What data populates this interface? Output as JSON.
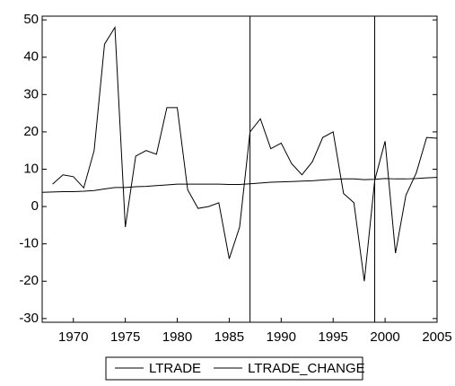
{
  "chart_data": {
    "type": "line",
    "x": [
      1967,
      1968,
      1969,
      1970,
      1971,
      1972,
      1973,
      1974,
      1975,
      1976,
      1977,
      1978,
      1979,
      1980,
      1981,
      1982,
      1983,
      1984,
      1985,
      1986,
      1987,
      1988,
      1989,
      1990,
      1991,
      1992,
      1993,
      1994,
      1995,
      1996,
      1997,
      1998,
      1999,
      2000,
      2001,
      2002,
      2003,
      2004,
      2005
    ],
    "series": [
      {
        "name": "LTRADE",
        "color": "#000000",
        "values": [
          3.8,
          3.9,
          4.0,
          4.0,
          4.1,
          4.3,
          4.7,
          5.1,
          5.1,
          5.3,
          5.4,
          5.6,
          5.8,
          6.0,
          6.0,
          6.0,
          6.0,
          6.0,
          5.9,
          5.9,
          6.1,
          6.3,
          6.5,
          6.6,
          6.7,
          6.8,
          6.9,
          7.1,
          7.3,
          7.4,
          7.4,
          7.2,
          7.3,
          7.5,
          7.4,
          7.4,
          7.5,
          7.7,
          7.8
        ]
      },
      {
        "name": "LTRADE_CHANGE",
        "color": "#000000",
        "values": [
          null,
          6,
          8.5,
          8,
          5,
          15,
          43.5,
          48,
          -5.5,
          13.5,
          15,
          14,
          26.5,
          26.5,
          4.5,
          -0.5,
          0,
          1,
          -14,
          -5.5,
          20,
          23.5,
          15.5,
          17,
          11.5,
          8.5,
          12,
          18.5,
          20,
          3.5,
          1,
          -20,
          7,
          17.5,
          -12.5,
          3,
          9,
          18.5,
          18.3
        ]
      }
    ],
    "vlines": [
      1987,
      1999
    ],
    "xlim": [
      1967,
      2005
    ],
    "xticks": [
      1970,
      1975,
      1980,
      1985,
      1990,
      1995,
      2000,
      2005
    ],
    "ylim": [
      -31,
      51
    ],
    "yticks": [
      -30,
      -20,
      -10,
      0,
      10,
      20,
      30,
      40,
      50
    ],
    "legend": "bottom"
  }
}
